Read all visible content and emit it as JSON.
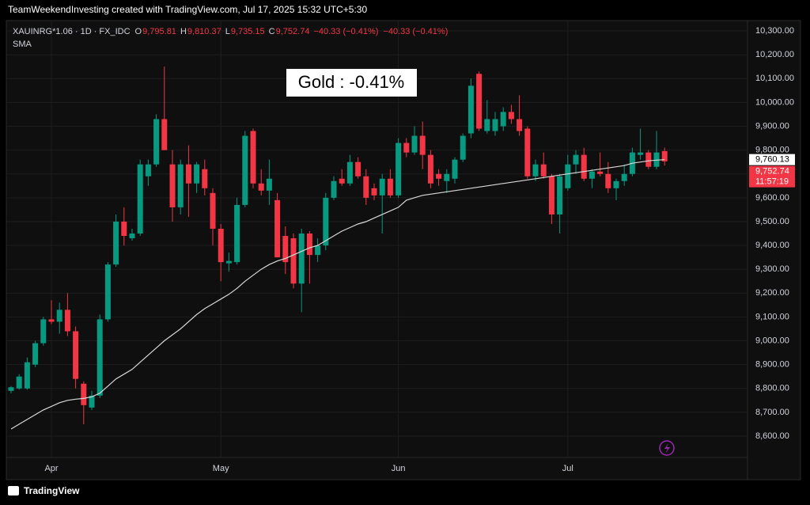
{
  "header": "TeamWeekendInvesting created with TradingView.com, Jul 17, 2025 15:32 UTC+5:30",
  "footer": "TradingView",
  "chart_data": {
    "type": "candlestick",
    "symbol": "XAUINRG*1.06 · 1D · FX_IDC",
    "ohlc_legend": [
      {
        "key": "O",
        "label": "9,795.81"
      },
      {
        "key": "H",
        "label": "9,810.37"
      },
      {
        "key": "L",
        "label": "9,735.15"
      },
      {
        "key": "C",
        "label": "9,752.74"
      }
    ],
    "changes": [
      "−40.33 (−0.41%)",
      "−40.33 (−0.41%)"
    ],
    "indicator": "SMA",
    "annotation": "Gold : -0.41%",
    "up_color": "#089981",
    "down_color": "#f23645",
    "sma_color": "#d8d8d8",
    "categories": [
      null,
      null,
      null,
      null,
      null,
      "Apr",
      null,
      null,
      null,
      null,
      null,
      null,
      null,
      null,
      null,
      null,
      null,
      null,
      null,
      null,
      null,
      null,
      null,
      null,
      null,
      null,
      "May",
      null,
      null,
      null,
      null,
      null,
      null,
      null,
      null,
      null,
      null,
      null,
      null,
      null,
      null,
      null,
      null,
      null,
      null,
      null,
      null,
      null,
      "Jun",
      null,
      null,
      null,
      null,
      null,
      null,
      null,
      null,
      null,
      null,
      null,
      null,
      null,
      null,
      null,
      null,
      null,
      null,
      null,
      null,
      "Jul",
      null,
      null,
      null,
      null,
      null,
      null,
      null,
      null,
      null,
      null,
      null,
      null
    ],
    "open": [
      8790,
      8800,
      8800,
      8900,
      8990,
      9090,
      9080,
      9130,
      9040,
      8820,
      8720,
      8770,
      9090,
      9320,
      9500,
      9430,
      9450,
      9690,
      9740,
      9930,
      9740,
      9560,
      9740,
      9660,
      9720,
      9620,
      9470,
      9325,
      9330,
      9570,
      9880,
      9660,
      9630,
      9590,
      9440,
      9430,
      9240,
      9450,
      9360,
      9400,
      9600,
      9680,
      9660,
      9750,
      9690,
      9640,
      9610,
      9680,
      9610,
      9830,
      9790,
      9860,
      9780,
      9700,
      9670,
      9680,
      9760,
      9870,
      10120,
      9880,
      9880,
      9900,
      9960,
      9930,
      9890,
      9690,
      9740,
      9690,
      9530,
      9640,
      9740,
      9780,
      9680,
      9710,
      9700,
      9640,
      9670,
      9700,
      9780,
      9790,
      9730,
      9795.81
    ],
    "high": [
      8810,
      8860,
      8930,
      9000,
      9100,
      9170,
      9160,
      9200,
      9060,
      8830,
      8790,
      9110,
      9330,
      9530,
      9560,
      9470,
      9760,
      9760,
      9950,
      10150,
      9800,
      9760,
      9820,
      9750,
      9760,
      9640,
      9490,
      9370,
      9600,
      9880,
      9890,
      9720,
      9760,
      9620,
      9480,
      9450,
      9470,
      9460,
      9430,
      9620,
      9690,
      9720,
      9780,
      9770,
      9720,
      9660,
      9700,
      9720,
      9850,
      9850,
      9900,
      9920,
      9800,
      9720,
      9720,
      9770,
      9870,
      10100,
      10130,
      10010,
      9960,
      9980,
      9990,
      10030,
      9900,
      9760,
      9790,
      9700,
      9700,
      9780,
      9800,
      9810,
      9720,
      9790,
      9750,
      9680,
      9740,
      9810,
      9890,
      9800,
      9880,
      9810.37
    ],
    "low": [
      8780,
      8795,
      8795,
      8890,
      8980,
      9070,
      9030,
      9020,
      8800,
      8650,
      8710,
      8760,
      9080,
      9310,
      9400,
      9420,
      9440,
      9650,
      9730,
      9800,
      9500,
      9530,
      9520,
      9620,
      9610,
      9400,
      9250,
      9290,
      9320,
      9560,
      9640,
      9610,
      9570,
      9350,
      9280,
      9220,
      9120,
      9240,
      9330,
      9380,
      9590,
      9650,
      9650,
      9680,
      9570,
      9590,
      9450,
      9600,
      9600,
      9770,
      9780,
      9720,
      9640,
      9650,
      9620,
      9660,
      9750,
      9850,
      9880,
      9870,
      9860,
      9880,
      9910,
      9860,
      9680,
      9670,
      9680,
      9490,
      9450,
      9630,
      9700,
      9670,
      9640,
      9690,
      9620,
      9590,
      9650,
      9690,
      9760,
      9720,
      9720,
      9735.15
    ],
    "close": [
      8805,
      8850,
      8910,
      8990,
      9090,
      9080,
      9130,
      9040,
      8840,
      8730,
      8770,
      9090,
      9320,
      9500,
      9440,
      9450,
      9740,
      9740,
      9930,
      9800,
      9560,
      9740,
      9660,
      9740,
      9640,
      9470,
      9330,
      9335,
      9570,
      9860,
      9660,
      9630,
      9680,
      9350,
      9330,
      9240,
      9450,
      9360,
      9400,
      9600,
      9670,
      9660,
      9750,
      9690,
      9600,
      9610,
      9680,
      9610,
      9830,
      9790,
      9860,
      9780,
      9660,
      9680,
      9700,
      9760,
      9860,
      10070,
      9890,
      9930,
      9930,
      9960,
      9930,
      9880,
      9690,
      9740,
      9690,
      9530,
      9690,
      9740,
      9780,
      9680,
      9710,
      9700,
      9640,
      9670,
      9700,
      9790,
      9790,
      9730,
      9790,
      9752.74
    ],
    "sma": [
      8630,
      8650,
      8670,
      8690,
      8710,
      8725,
      8740,
      8750,
      8755,
      8758,
      8765,
      8780,
      8810,
      8840,
      8860,
      8880,
      8910,
      8940,
      8970,
      9000,
      9025,
      9050,
      9080,
      9110,
      9135,
      9155,
      9175,
      9195,
      9220,
      9250,
      9275,
      9300,
      9320,
      9335,
      9345,
      9360,
      9375,
      9390,
      9400,
      9420,
      9440,
      9460,
      9475,
      9490,
      9500,
      9515,
      9530,
      9545,
      9560,
      9590,
      9600,
      9610,
      9615,
      9620,
      9625,
      9630,
      9635,
      9640,
      9645,
      9650,
      9655,
      9660,
      9665,
      9670,
      9675,
      9680,
      9685,
      9690,
      9695,
      9700,
      9705,
      9710,
      9715,
      9720,
      9725,
      9730,
      9735,
      9745,
      9750,
      9755,
      9758,
      9760
    ],
    "price_labels": [
      {
        "value": 9760.13,
        "label": "9,760.13"
      },
      {
        "value": 9752.74,
        "label": "9,752.74"
      }
    ],
    "countdown": "11:57:19",
    "ylim": [
      8424,
      10340
    ],
    "yticks": [
      {
        "value": 8600,
        "label": "8,600.00"
      },
      {
        "value": 8700,
        "label": "8,700.00"
      },
      {
        "value": 8800,
        "label": "8,800.00"
      },
      {
        "value": 8900,
        "label": "8,900.00"
      },
      {
        "value": 9000,
        "label": "9,000.00"
      },
      {
        "value": 9100,
        "label": "9,100.00"
      },
      {
        "value": 9200,
        "label": "9,200.00"
      },
      {
        "value": 9300,
        "label": "9,300.00"
      },
      {
        "value": 9400,
        "label": "9,400.00"
      },
      {
        "value": 9500,
        "label": "9,500.00"
      },
      {
        "value": 9600,
        "label": "9,600.00"
      },
      {
        "value": 9700,
        "label": "9,700.00"
      },
      {
        "value": 9800,
        "label": "9,800.00"
      },
      {
        "value": 9900,
        "label": "9,900.00"
      },
      {
        "value": 10000,
        "label": "10,000.00"
      },
      {
        "value": 10100,
        "label": "10,100.00"
      },
      {
        "value": 10200,
        "label": "10,200.00"
      },
      {
        "value": 10300,
        "label": "10,300.00"
      }
    ],
    "grid": true
  }
}
